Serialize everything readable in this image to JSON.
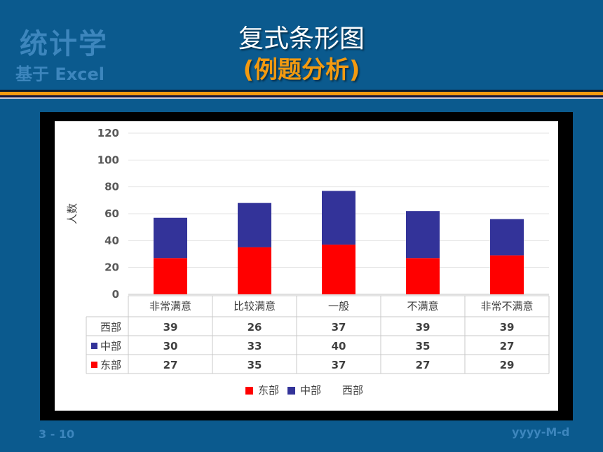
{
  "slide": {
    "logo_line1": "统计学",
    "logo_line2": "基于 Excel",
    "title": "复式条形图",
    "subtitle": "(例题分析)",
    "page_number": "3 - 10",
    "date_placeholder": "yyyy-M-d"
  },
  "colors": {
    "background": "#0b5a8e",
    "east": "#ff0000",
    "central": "#333399",
    "subtitle": "#f39a10"
  },
  "chart_data": {
    "type": "bar",
    "stacked": true,
    "categories": [
      "非常满意",
      "比较满意",
      "一般",
      "不满意",
      "非常不满意"
    ],
    "series": [
      {
        "name": "东部",
        "values": [
          27,
          35,
          37,
          27,
          29
        ],
        "color": "#ff0000"
      },
      {
        "name": "中部",
        "values": [
          30,
          33,
          40,
          35,
          27
        ],
        "color": "#333399"
      },
      {
        "name": "西部",
        "values": [
          39,
          26,
          37,
          39,
          39
        ],
        "color": "none"
      }
    ],
    "ylabel": "人数",
    "ylim": [
      0,
      120
    ],
    "yticks": [
      0,
      20,
      40,
      60,
      80,
      100,
      120
    ],
    "grid": true,
    "legend": "bottom",
    "data_table": true
  }
}
